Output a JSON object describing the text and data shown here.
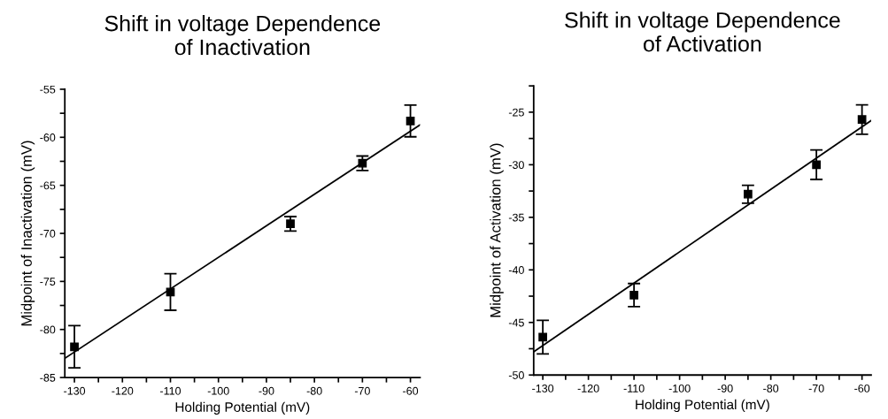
{
  "chart_data": [
    {
      "type": "scatter",
      "title": "Shift in voltage Dependence\nof Inactivation",
      "xlabel": "Holding Potential (mV)",
      "ylabel": "Midpoint of Inactivation (mV)",
      "marker": "square",
      "xlim": [
        -132,
        -58
      ],
      "xticks": [
        -130,
        {
          "value": -125,
          "label": null
        },
        -120,
        {
          "value": -115,
          "label": null
        },
        -110,
        {
          "value": -105,
          "label": null
        },
        -100,
        {
          "value": -95,
          "label": null
        },
        -90,
        {
          "value": -85,
          "label": null
        },
        -80,
        {
          "value": -75,
          "label": null
        },
        -70,
        {
          "value": -65,
          "label": null
        },
        -60
      ],
      "ylim": [
        -85,
        -55
      ],
      "yticks": [
        -85,
        {
          "value": -82.5,
          "label": null
        },
        -80,
        {
          "value": -77.5,
          "label": null
        },
        -75,
        {
          "value": -72.5,
          "label": null
        },
        -70,
        {
          "value": -67.5,
          "label": null
        },
        -65,
        {
          "value": -62.5,
          "label": null
        },
        -60,
        {
          "value": -57.5,
          "label": null
        },
        -55
      ],
      "series": [
        {
          "color": "#000000",
          "x": [
            -130,
            -110,
            -85,
            -70,
            -60
          ],
          "values": [
            -81.8,
            -76.1,
            -69.0,
            -62.7,
            -58.3
          ],
          "errors": [
            2.2,
            1.9,
            0.75,
            0.75,
            1.65
          ]
        },
        {
          "type": "line",
          "color": "#000000",
          "marker": "none",
          "x": [
            -132,
            -58
          ],
          "values": [
            -83.0,
            -58.7
          ]
        }
      ]
    },
    {
      "type": "scatter",
      "title": "Shift in voltage Dependence\nof Activation",
      "xlabel": "Holding Potential (mV)",
      "ylabel": "Midpoint of Activation (mV)",
      "marker": "square",
      "xlim": [
        -132,
        -58
      ],
      "xticks": [
        -130,
        {
          "value": -125,
          "label": null
        },
        -120,
        {
          "value": -115,
          "label": null
        },
        -110,
        {
          "value": -105,
          "label": null
        },
        -100,
        {
          "value": -95,
          "label": null
        },
        -90,
        {
          "value": -85,
          "label": null
        },
        -80,
        {
          "value": -75,
          "label": null
        },
        -70,
        {
          "value": -65,
          "label": null
        },
        -60
      ],
      "ylim": [
        -50,
        -22.5
      ],
      "yticks": [
        -50,
        {
          "value": -47.5,
          "label": null
        },
        -45,
        {
          "value": -42.5,
          "label": null
        },
        -40,
        {
          "value": -37.5,
          "label": null
        },
        -35,
        {
          "value": -32.5,
          "label": null
        },
        -30,
        {
          "value": -27.5,
          "label": null
        },
        -25,
        {
          "value": -22.5,
          "label": null
        }
      ],
      "series": [
        {
          "color": "#000000",
          "x": [
            -130,
            -110,
            -85,
            -70,
            -60
          ],
          "values": [
            -46.4,
            -42.4,
            -32.8,
            -30.0,
            -25.7
          ],
          "errors": [
            1.6,
            1.1,
            0.85,
            1.4,
            1.4
          ]
        },
        {
          "type": "line",
          "color": "#000000",
          "marker": "none",
          "x": [
            -132,
            -58
          ],
          "values": [
            -47.8,
            -25.8
          ]
        }
      ]
    }
  ]
}
